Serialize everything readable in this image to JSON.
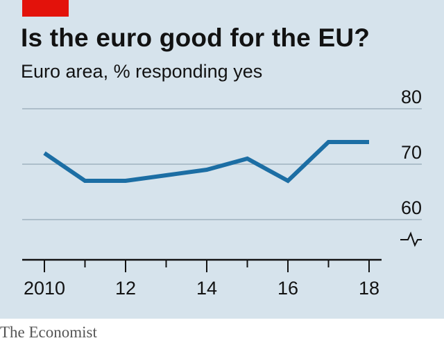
{
  "chart": {
    "title": "Is the euro good for the EU?",
    "subtitle": "Euro area, % responding yes",
    "source": "The Economist"
  },
  "colors": {
    "background": "#d6e3ec",
    "line": "#1c6ea4",
    "accent": "#e3120b",
    "grid": "#9fb2bf",
    "axis": "#121212",
    "text": "#121212"
  },
  "chart_data": {
    "type": "line",
    "title": "Is the euro good for the EU?",
    "subtitle": "Euro area, % responding yes",
    "xlabel": "",
    "ylabel": "",
    "x": [
      2010,
      2011,
      2012,
      2013,
      2014,
      2015,
      2016,
      2017,
      2018
    ],
    "series": [
      {
        "values": [
          72,
          67,
          67,
          68,
          69,
          71,
          67,
          74,
          74
        ]
      }
    ],
    "xticks": [
      2010,
      2011,
      2012,
      2013,
      2014,
      2015,
      2016,
      2017,
      2018
    ],
    "xtick_labels": [
      {
        "value": 2010,
        "label": "2010"
      },
      {
        "value": 2012,
        "label": "12"
      },
      {
        "value": 2014,
        "label": "14"
      },
      {
        "value": 2016,
        "label": "16"
      },
      {
        "value": 2018,
        "label": "18"
      }
    ],
    "yticks": [
      {
        "value": 80,
        "label": "80"
      },
      {
        "value": 70,
        "label": "70"
      },
      {
        "value": 60,
        "label": "60"
      }
    ],
    "ylim": [
      60,
      80
    ],
    "xlim": [
      2010,
      2018
    ],
    "axis_break": true,
    "grid": true
  }
}
